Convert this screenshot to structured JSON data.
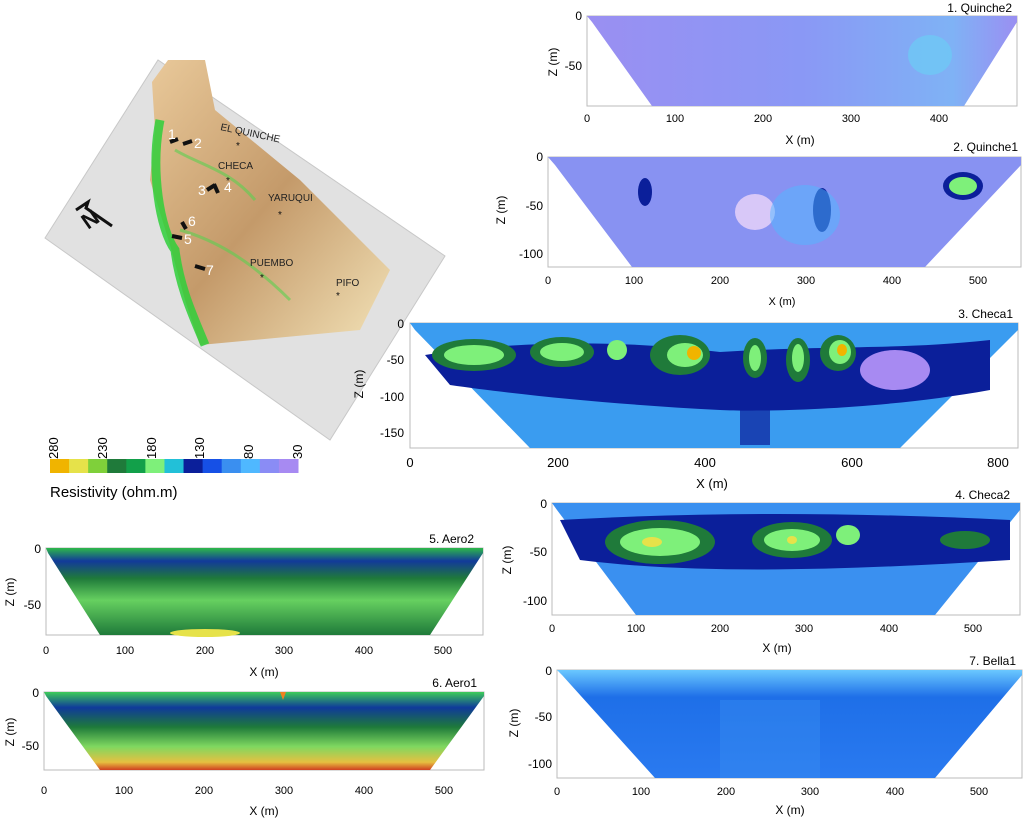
{
  "map": {
    "places": [
      {
        "label": "EL QUINCHE"
      },
      {
        "label": "CHECA"
      },
      {
        "label": "YARUQUI"
      },
      {
        "label": "PUEMBO"
      },
      {
        "label": "PIFO"
      }
    ],
    "profile_markers": [
      "1",
      "2",
      "3",
      "4",
      "5",
      "6",
      "7"
    ],
    "north_label": "N"
  },
  "legend": {
    "title": "Resistivity (ohm.m)",
    "ticks": [
      "280",
      "230",
      "180",
      "130",
      "80",
      "30"
    ],
    "colors": [
      "#f0b400",
      "#e6e24a",
      "#7fd03a",
      "#1f7a3a",
      "#12a04a",
      "#7ef07a",
      "#22c0d8",
      "#0b1f9a",
      "#1650e6",
      "#3a8ff0",
      "#4fb8ff",
      "#8a8cf5",
      "#a78af2"
    ]
  },
  "chart_data": [
    {
      "type": "heatmap",
      "title": "1. Quinche2",
      "xlabel": "X (m)",
      "ylabel": "Z (m)",
      "xlim": [
        0,
        490
      ],
      "ylim": [
        -95,
        0
      ],
      "xticks": [
        "0",
        "100",
        "200",
        "300",
        "400"
      ],
      "yticks": [
        "0",
        "-50"
      ],
      "base_color": "#8f93f2"
    },
    {
      "type": "heatmap",
      "title": "2. Quinche1",
      "xlabel": "X (m)",
      "ylabel": "Z (m)",
      "xlim": [
        0,
        550
      ],
      "ylim": [
        -115,
        0
      ],
      "xticks": [
        "0",
        "100",
        "200",
        "300",
        "400",
        "500"
      ],
      "yticks": [
        "0",
        "-50",
        "-100"
      ],
      "base_color": "#7ea0f5"
    },
    {
      "type": "heatmap",
      "title": "3. Checa1",
      "xlabel": "X (m)",
      "ylabel": "Z (m)",
      "xlim": [
        0,
        820
      ],
      "ylim": [
        -170,
        0
      ],
      "xticks": [
        "0",
        "200",
        "400",
        "600",
        "800"
      ],
      "yticks": [
        "0",
        "-50",
        "-100",
        "-150"
      ],
      "base_color": "#3a9cf0"
    },
    {
      "type": "heatmap",
      "title": "4. Checa2",
      "xlabel": "X (m)",
      "ylabel": "Z (m)",
      "xlim": [
        0,
        550
      ],
      "ylim": [
        -115,
        0
      ],
      "xticks": [
        "0",
        "100",
        "200",
        "300",
        "400",
        "500"
      ],
      "yticks": [
        "0",
        "-50",
        "-100"
      ],
      "base_color": "#3a90f0"
    },
    {
      "type": "heatmap",
      "title": "5. Aero2",
      "xlabel": "X (m)",
      "ylabel": "Z (m)",
      "xlim": [
        0,
        550
      ],
      "ylim": [
        -75,
        0
      ],
      "xticks": [
        "0",
        "100",
        "200",
        "300",
        "400",
        "500"
      ],
      "yticks": [
        "0",
        "-50"
      ],
      "base_color": "#2fa84a"
    },
    {
      "type": "heatmap",
      "title": "6. Aero1",
      "xlabel": "X (m)",
      "ylabel": "Z (m)",
      "xlim": [
        0,
        550
      ],
      "ylim": [
        -75,
        0
      ],
      "xticks": [
        "0",
        "100",
        "200",
        "300",
        "400",
        "500"
      ],
      "yticks": [
        "0",
        "-50"
      ],
      "base_color": "#1f8f3a"
    },
    {
      "type": "heatmap",
      "title": "7. Bella1",
      "xlabel": "X (m)",
      "ylabel": "Z (m)",
      "xlim": [
        0,
        550
      ],
      "ylim": [
        -115,
        0
      ],
      "xticks": [
        "0",
        "100",
        "200",
        "300",
        "400",
        "500"
      ],
      "yticks": [
        "0",
        "-50",
        "-100"
      ],
      "base_color": "#1a6fe8"
    }
  ]
}
